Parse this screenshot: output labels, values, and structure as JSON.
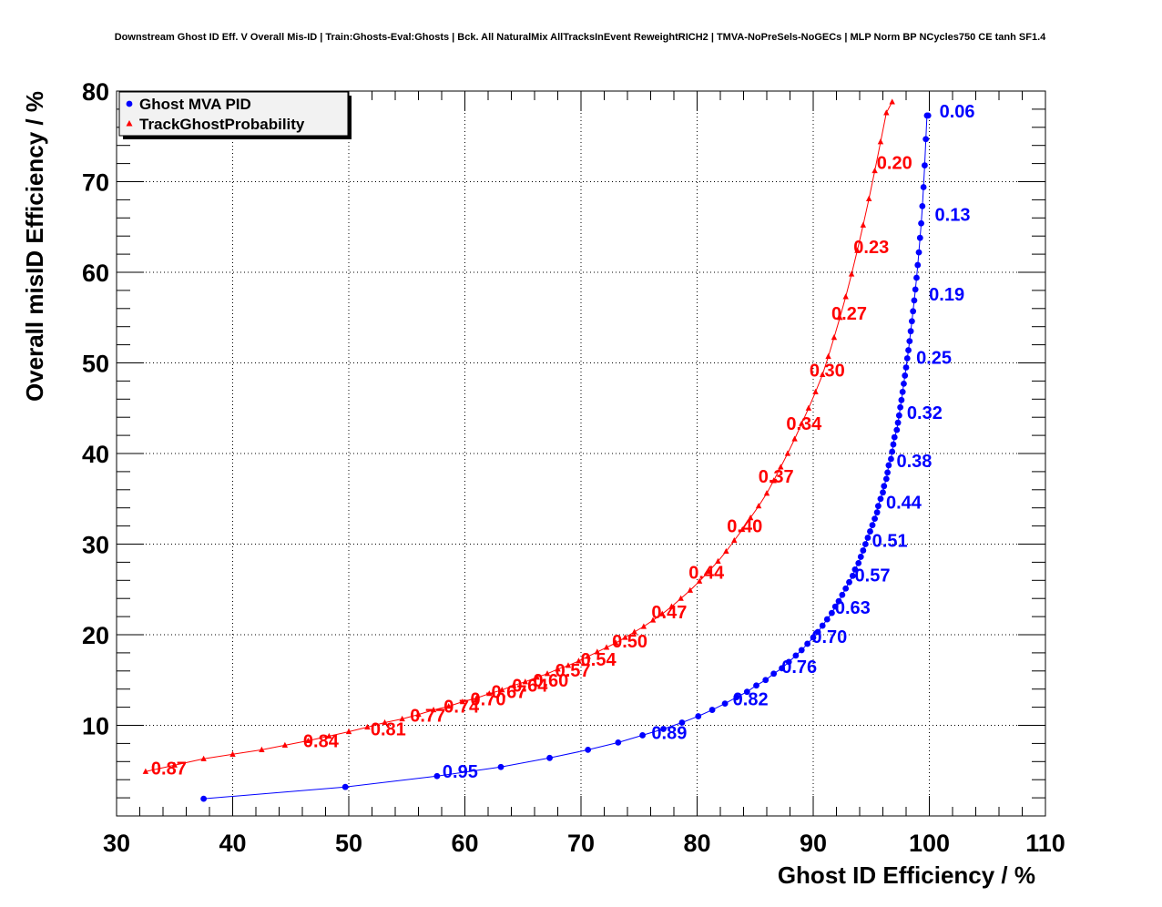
{
  "chart_data": {
    "type": "scatter",
    "title": "Downstream Ghost ID Eff. V Overall Mis-ID | Train:Ghosts-Eval:Ghosts | Bck. All NaturalMix AllTracksInEvent ReweightRICH2 | TMVA-NoPreSels-NoGECs | MLP Norm BP NCycles750 CE tanh SF1.4",
    "xlabel": "Ghost ID Efficiency / %",
    "ylabel": "Overall misID Efficiency / %",
    "xlim": [
      30,
      110
    ],
    "ylim": [
      0,
      80
    ],
    "xticks": [
      30,
      40,
      50,
      60,
      70,
      80,
      90,
      100,
      110
    ],
    "yticks": [
      10,
      20,
      30,
      40,
      50,
      60,
      70,
      80
    ],
    "grid": true,
    "legend_position": "top-left",
    "series": [
      {
        "name": "Ghost MVA PID",
        "color": "#0000ff",
        "marker": "circle",
        "x": [
          37.5,
          49.7,
          57.6,
          63.1,
          67.3,
          70.6,
          73.2,
          75.3,
          77.1,
          78.7,
          80.1,
          81.3,
          82.4,
          83.4,
          84.3,
          85.1,
          85.9,
          86.6,
          87.3,
          87.9,
          88.5,
          89.0,
          89.5,
          90.0,
          90.4,
          90.8,
          91.2,
          91.6,
          91.9,
          92.2,
          92.5,
          92.8,
          93.1,
          93.4,
          93.6,
          93.9,
          94.1,
          94.3,
          94.5,
          94.7,
          94.9,
          95.1,
          95.3,
          95.5,
          95.6,
          95.8,
          96.0,
          96.1,
          96.3,
          96.4,
          96.5,
          96.7,
          96.8,
          96.9,
          97.0,
          97.2,
          97.3,
          97.4,
          97.5,
          97.6,
          97.7,
          97.8,
          97.9,
          98.0,
          98.1,
          98.2,
          98.3,
          98.4,
          98.5,
          98.6,
          98.7,
          98.8,
          98.9,
          99.0,
          99.1,
          99.2,
          99.3,
          99.4,
          99.5,
          99.6,
          99.7,
          99.8,
          99.9
        ],
        "y": [
          1.9,
          3.2,
          4.4,
          5.4,
          6.4,
          7.3,
          8.1,
          8.9,
          9.6,
          10.3,
          11.0,
          11.7,
          12.4,
          13.1,
          13.7,
          14.4,
          15.0,
          15.7,
          16.3,
          17.0,
          17.7,
          18.3,
          19.0,
          19.7,
          20.3,
          21.0,
          21.7,
          22.4,
          23.1,
          23.7,
          24.4,
          25.1,
          25.8,
          26.5,
          27.2,
          27.9,
          28.6,
          29.3,
          30.0,
          30.7,
          31.4,
          32.1,
          32.8,
          33.5,
          34.2,
          35.0,
          35.7,
          36.4,
          37.2,
          37.9,
          38.7,
          39.4,
          40.2,
          41.0,
          41.8,
          42.6,
          43.4,
          44.2,
          45.1,
          45.9,
          46.8,
          47.7,
          48.6,
          49.5,
          50.5,
          51.4,
          52.4,
          53.5,
          54.6,
          55.7,
          56.9,
          58.1,
          59.4,
          60.8,
          62.2,
          63.8,
          65.4,
          67.3,
          69.4,
          71.8,
          74.7,
          77.3,
          77.3
        ]
      },
      {
        "name": "TrackGhostProbability",
        "color": "#ff0000",
        "marker": "triangle",
        "x": [
          32.5,
          35.0,
          37.5,
          40.0,
          42.5,
          44.5,
          46.5,
          48.3,
          50.0,
          51.6,
          53.1,
          54.6,
          56.0,
          57.3,
          58.6,
          59.8,
          61.0,
          62.1,
          63.2,
          64.2,
          65.2,
          66.2,
          67.1,
          68.0,
          68.9,
          69.8,
          70.6,
          71.4,
          72.2,
          73.0,
          73.8,
          74.6,
          75.4,
          76.2,
          77.0,
          77.8,
          78.6,
          79.4,
          80.2,
          81.0,
          81.8,
          82.5,
          83.2,
          83.9,
          84.6,
          85.3,
          86.0,
          86.6,
          87.2,
          87.8,
          88.4,
          89.0,
          89.6,
          90.2,
          90.8,
          91.3,
          91.8,
          92.3,
          92.8,
          93.3,
          93.8,
          94.3,
          94.8,
          95.3,
          95.8,
          96.3,
          96.8
        ],
        "y": [
          4.9,
          5.6,
          6.3,
          6.8,
          7.3,
          7.8,
          8.3,
          8.8,
          9.3,
          9.8,
          10.3,
          10.7,
          11.2,
          11.7,
          12.1,
          12.6,
          13.0,
          13.5,
          13.9,
          14.4,
          14.8,
          15.3,
          15.7,
          16.2,
          16.6,
          17.1,
          17.6,
          18.1,
          18.6,
          19.1,
          19.7,
          20.3,
          20.9,
          21.6,
          22.3,
          23.1,
          24.0,
          24.9,
          25.9,
          27.0,
          28.1,
          29.2,
          30.4,
          31.6,
          32.9,
          34.2,
          35.6,
          37.0,
          38.5,
          40.0,
          41.6,
          43.3,
          45.0,
          46.8,
          48.7,
          50.7,
          52.8,
          55.0,
          57.3,
          59.8,
          62.4,
          65.2,
          68.1,
          71.2,
          74.4,
          77.6,
          78.8
        ]
      }
    ],
    "annotations": [
      {
        "text": "0.06",
        "x": 102.4,
        "y": 77.8,
        "series": 0
      },
      {
        "text": "0.13",
        "x": 102.0,
        "y": 66.4,
        "series": 0
      },
      {
        "text": "0.19",
        "x": 101.5,
        "y": 57.6,
        "series": 0
      },
      {
        "text": "0.25",
        "x": 100.4,
        "y": 50.6,
        "series": 0
      },
      {
        "text": "0.32",
        "x": 99.6,
        "y": 44.5,
        "series": 0
      },
      {
        "text": "0.38",
        "x": 98.7,
        "y": 39.2,
        "series": 0
      },
      {
        "text": "0.44",
        "x": 97.8,
        "y": 34.6,
        "series": 0
      },
      {
        "text": "0.51",
        "x": 96.6,
        "y": 30.4,
        "series": 0
      },
      {
        "text": "0.57",
        "x": 95.1,
        "y": 26.6,
        "series": 0
      },
      {
        "text": "0.63",
        "x": 93.4,
        "y": 23.0,
        "series": 0
      },
      {
        "text": "0.70",
        "x": 91.4,
        "y": 19.8,
        "series": 0
      },
      {
        "text": "0.76",
        "x": 88.8,
        "y": 16.5,
        "series": 0
      },
      {
        "text": "0.82",
        "x": 84.6,
        "y": 12.9,
        "series": 0
      },
      {
        "text": "0.89",
        "x": 77.6,
        "y": 9.2,
        "series": 0
      },
      {
        "text": "0.95",
        "x": 59.6,
        "y": 4.9,
        "series": 0
      },
      {
        "text": "0.20",
        "x": 97.0,
        "y": 72.1,
        "series": 1
      },
      {
        "text": "0.23",
        "x": 95.0,
        "y": 62.8,
        "series": 1
      },
      {
        "text": "0.27",
        "x": 93.1,
        "y": 55.5,
        "series": 1
      },
      {
        "text": "0.30",
        "x": 91.2,
        "y": 49.2,
        "series": 1
      },
      {
        "text": "0.34",
        "x": 89.2,
        "y": 43.3,
        "series": 1
      },
      {
        "text": "0.37",
        "x": 86.8,
        "y": 37.5,
        "series": 1
      },
      {
        "text": "0.40",
        "x": 84.1,
        "y": 32.0,
        "series": 1
      },
      {
        "text": "0.44",
        "x": 80.8,
        "y": 26.9,
        "series": 1
      },
      {
        "text": "0.47",
        "x": 77.6,
        "y": 22.5,
        "series": 1
      },
      {
        "text": "0.50",
        "x": 74.2,
        "y": 19.3,
        "series": 1
      },
      {
        "text": "0.54",
        "x": 71.5,
        "y": 17.3,
        "series": 1
      },
      {
        "text": "0.57",
        "x": 69.3,
        "y": 16.1,
        "series": 1
      },
      {
        "text": "0.60",
        "x": 67.4,
        "y": 15.0,
        "series": 1
      },
      {
        "text": "0.64",
        "x": 65.6,
        "y": 14.4,
        "series": 1
      },
      {
        "text": "0.67",
        "x": 63.8,
        "y": 13.7,
        "series": 1
      },
      {
        "text": "0.70",
        "x": 62.0,
        "y": 12.9,
        "series": 1
      },
      {
        "text": "0.74",
        "x": 59.7,
        "y": 12.1,
        "series": 1
      },
      {
        "text": "0.77",
        "x": 56.8,
        "y": 11.1,
        "series": 1
      },
      {
        "text": "0.81",
        "x": 53.4,
        "y": 9.6,
        "series": 1
      },
      {
        "text": "0.84",
        "x": 47.6,
        "y": 8.3,
        "series": 1
      },
      {
        "text": "0.87",
        "x": 34.5,
        "y": 5.3,
        "series": 1
      }
    ]
  }
}
